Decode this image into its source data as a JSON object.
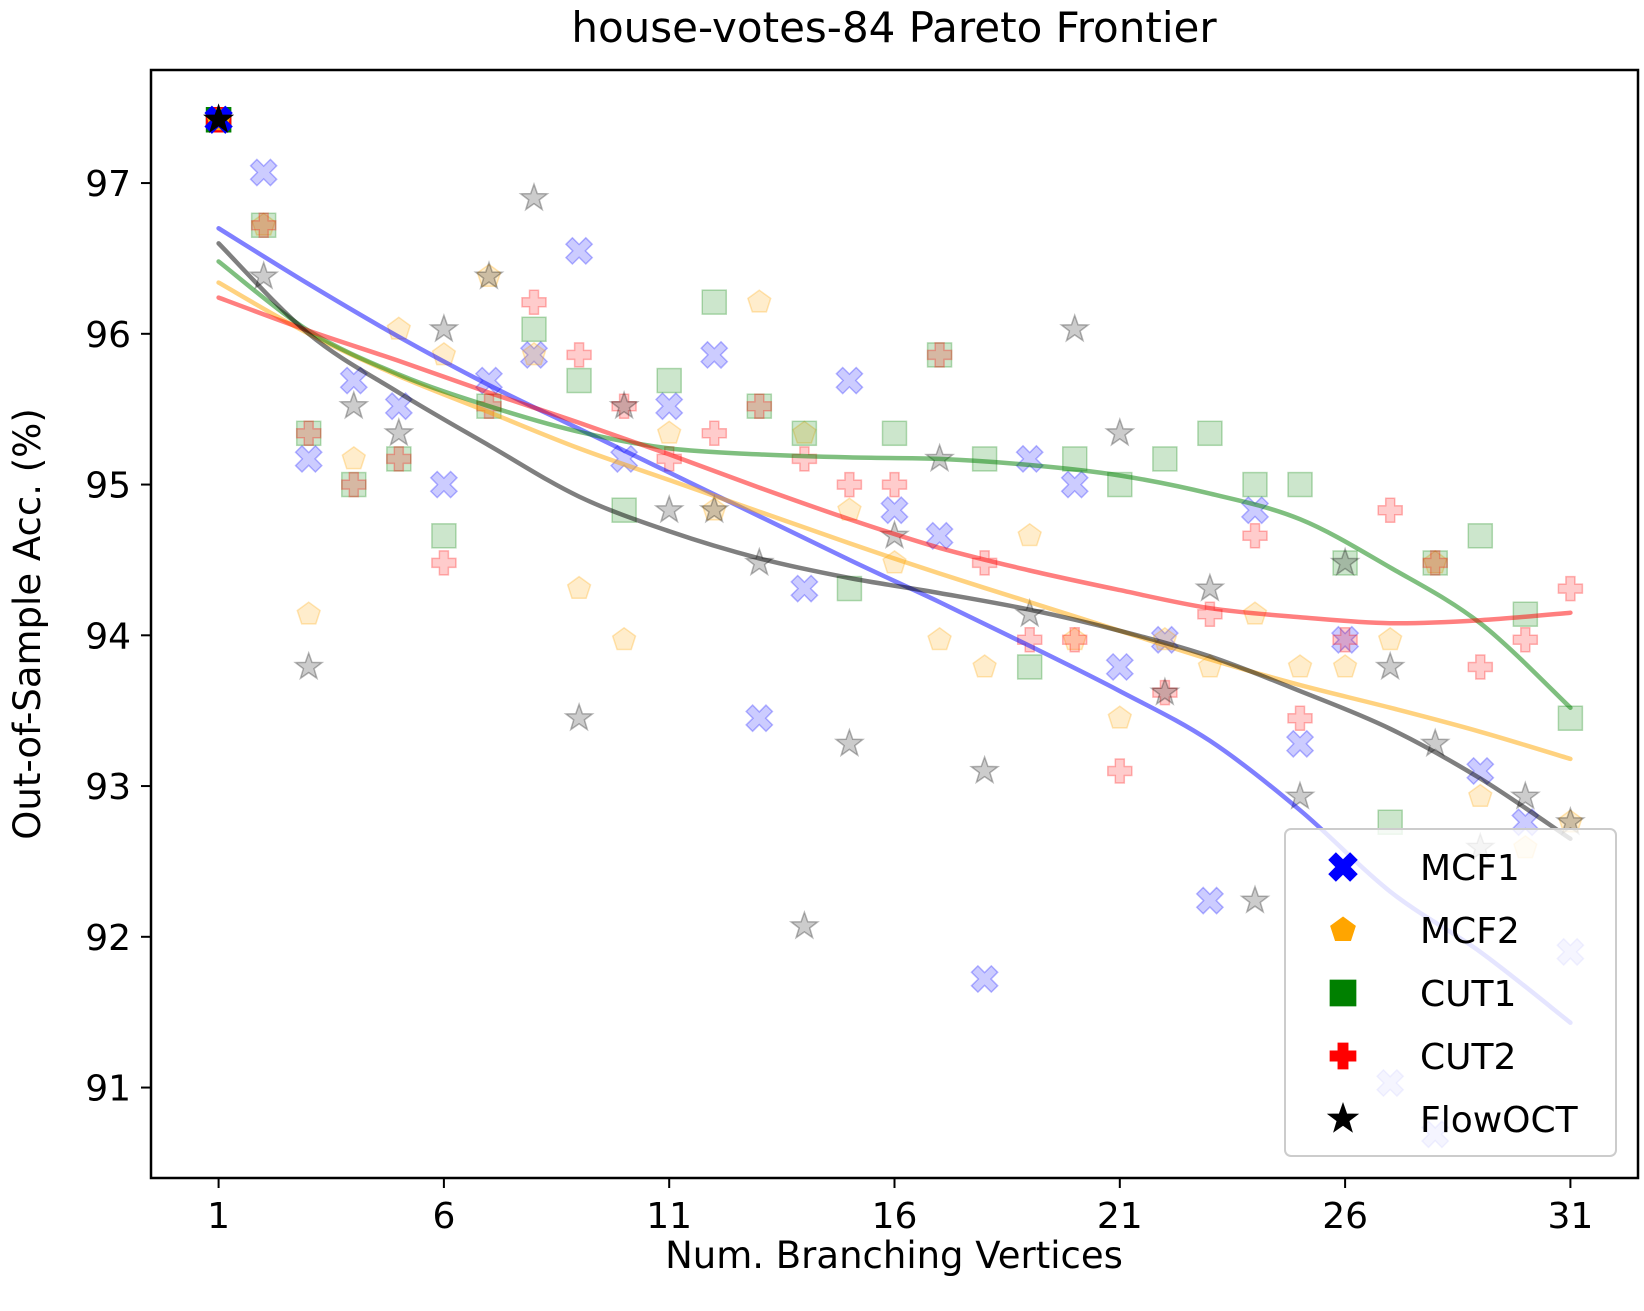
{
  "chart_data": {
    "type": "scatter",
    "title": "house-votes-84 Pareto Frontier",
    "xlabel": "Num. Branching Vertices",
    "ylabel": "Out-of-Sample Acc. (%)",
    "xlim": [
      -0.5,
      32.5
    ],
    "ylim": [
      90.4,
      97.75
    ],
    "xticks": [
      1,
      6,
      11,
      16,
      21,
      26,
      31
    ],
    "yticks": [
      91,
      92,
      93,
      94,
      95,
      96,
      97
    ],
    "grid": false,
    "legend_position": "lower-right",
    "series": [
      {
        "name": "MCF1",
        "marker": "x-filled",
        "color": "#0000ff",
        "points": [
          [
            1,
            97.42
          ],
          [
            2,
            97.07
          ],
          [
            3,
            95.17
          ],
          [
            4,
            95.69
          ],
          [
            5,
            95.52
          ],
          [
            6,
            95.0
          ],
          [
            7,
            95.69
          ],
          [
            8,
            95.86
          ],
          [
            9,
            96.55
          ],
          [
            10,
            95.17
          ],
          [
            11,
            95.52
          ],
          [
            12,
            95.86
          ],
          [
            13,
            93.45
          ],
          [
            14,
            94.31
          ],
          [
            15,
            95.69
          ],
          [
            16,
            94.83
          ],
          [
            17,
            94.66
          ],
          [
            18,
            91.72
          ],
          [
            19,
            95.17
          ],
          [
            20,
            95.0
          ],
          [
            21,
            93.79
          ],
          [
            22,
            93.97
          ],
          [
            23,
            92.24
          ],
          [
            24,
            94.83
          ],
          [
            25,
            93.28
          ],
          [
            26,
            93.97
          ],
          [
            27,
            91.03
          ],
          [
            28,
            90.69
          ],
          [
            29,
            93.1
          ],
          [
            30,
            92.76
          ],
          [
            31,
            91.9
          ]
        ],
        "fit": [
          [
            1,
            96.7
          ],
          [
            3,
            96.33
          ],
          [
            5,
            95.98
          ],
          [
            7,
            95.66
          ],
          [
            9,
            95.37
          ],
          [
            11,
            95.08
          ],
          [
            13,
            94.79
          ],
          [
            15,
            94.5
          ],
          [
            17,
            94.22
          ],
          [
            19,
            93.93
          ],
          [
            21,
            93.63
          ],
          [
            23,
            93.3
          ],
          [
            25,
            92.84
          ],
          [
            27,
            92.3
          ],
          [
            29,
            91.9
          ],
          [
            31,
            91.43
          ]
        ]
      },
      {
        "name": "MCF2",
        "marker": "pentagon",
        "color": "#ffa500",
        "points": [
          [
            1,
            97.42
          ],
          [
            2,
            96.72
          ],
          [
            3,
            94.14
          ],
          [
            4,
            95.17
          ],
          [
            5,
            96.03
          ],
          [
            6,
            95.86
          ],
          [
            7,
            96.38
          ],
          [
            8,
            95.86
          ],
          [
            9,
            94.31
          ],
          [
            10,
            93.97
          ],
          [
            11,
            95.34
          ],
          [
            12,
            94.83
          ],
          [
            13,
            96.21
          ],
          [
            14,
            95.34
          ],
          [
            15,
            94.83
          ],
          [
            16,
            94.48
          ],
          [
            17,
            93.97
          ],
          [
            18,
            93.79
          ],
          [
            19,
            94.66
          ],
          [
            20,
            93.97
          ],
          [
            21,
            93.45
          ],
          [
            22,
            93.97
          ],
          [
            23,
            93.79
          ],
          [
            24,
            94.14
          ],
          [
            25,
            93.79
          ],
          [
            26,
            93.79
          ],
          [
            27,
            93.97
          ],
          [
            28,
            94.48
          ],
          [
            29,
            92.93
          ],
          [
            30,
            92.59
          ],
          [
            31,
            92.76
          ]
        ],
        "fit": [
          [
            1,
            96.34
          ],
          [
            3,
            96.0
          ],
          [
            5,
            95.72
          ],
          [
            7,
            95.48
          ],
          [
            9,
            95.24
          ],
          [
            11,
            95.03
          ],
          [
            13,
            94.82
          ],
          [
            15,
            94.61
          ],
          [
            17,
            94.41
          ],
          [
            19,
            94.22
          ],
          [
            21,
            94.03
          ],
          [
            23,
            93.84
          ],
          [
            25,
            93.67
          ],
          [
            27,
            93.52
          ],
          [
            29,
            93.36
          ],
          [
            31,
            93.18
          ]
        ]
      },
      {
        "name": "CUT1",
        "marker": "square",
        "color": "#008000",
        "points": [
          [
            1,
            97.42
          ],
          [
            2,
            96.72
          ],
          [
            3,
            95.34
          ],
          [
            4,
            95.0
          ],
          [
            5,
            95.17
          ],
          [
            6,
            94.66
          ],
          [
            7,
            95.52
          ],
          [
            8,
            96.03
          ],
          [
            9,
            95.69
          ],
          [
            10,
            94.83
          ],
          [
            11,
            95.69
          ],
          [
            12,
            96.21
          ],
          [
            13,
            95.52
          ],
          [
            14,
            95.34
          ],
          [
            15,
            94.31
          ],
          [
            16,
            95.34
          ],
          [
            17,
            95.86
          ],
          [
            18,
            95.17
          ],
          [
            19,
            93.79
          ],
          [
            20,
            95.17
          ],
          [
            21,
            95.0
          ],
          [
            22,
            95.17
          ],
          [
            23,
            95.34
          ],
          [
            24,
            95.0
          ],
          [
            25,
            95.0
          ],
          [
            26,
            94.48
          ],
          [
            27,
            92.76
          ],
          [
            28,
            94.48
          ],
          [
            29,
            94.66
          ],
          [
            30,
            94.14
          ],
          [
            31,
            93.45
          ]
        ],
        "fit": [
          [
            1,
            96.48
          ],
          [
            3,
            96.02
          ],
          [
            5,
            95.73
          ],
          [
            7,
            95.52
          ],
          [
            9,
            95.35
          ],
          [
            11,
            95.24
          ],
          [
            13,
            95.2
          ],
          [
            15,
            95.18
          ],
          [
            17,
            95.17
          ],
          [
            19,
            95.13
          ],
          [
            21,
            95.06
          ],
          [
            23,
            94.94
          ],
          [
            25,
            94.77
          ],
          [
            27,
            94.45
          ],
          [
            29,
            94.08
          ],
          [
            31,
            93.52
          ]
        ]
      },
      {
        "name": "CUT2",
        "marker": "plus-filled",
        "color": "#ff0000",
        "points": [
          [
            1,
            97.42
          ],
          [
            2,
            96.72
          ],
          [
            3,
            95.34
          ],
          [
            4,
            95.0
          ],
          [
            5,
            95.17
          ],
          [
            6,
            94.48
          ],
          [
            7,
            95.52
          ],
          [
            8,
            96.21
          ],
          [
            9,
            95.86
          ],
          [
            10,
            95.52
          ],
          [
            11,
            95.17
          ],
          [
            12,
            95.34
          ],
          [
            13,
            95.52
          ],
          [
            14,
            95.17
          ],
          [
            15,
            95.0
          ],
          [
            16,
            95.0
          ],
          [
            17,
            95.86
          ],
          [
            18,
            94.48
          ],
          [
            19,
            93.97
          ],
          [
            20,
            93.97
          ],
          [
            21,
            93.1
          ],
          [
            22,
            93.62
          ],
          [
            23,
            94.14
          ],
          [
            24,
            94.66
          ],
          [
            25,
            93.45
          ],
          [
            26,
            93.97
          ],
          [
            27,
            94.83
          ],
          [
            28,
            94.48
          ],
          [
            29,
            93.79
          ],
          [
            30,
            93.97
          ],
          [
            31,
            94.31
          ]
        ],
        "fit": [
          [
            1,
            96.24
          ],
          [
            3,
            96.02
          ],
          [
            5,
            95.82
          ],
          [
            7,
            95.61
          ],
          [
            9,
            95.41
          ],
          [
            11,
            95.2
          ],
          [
            13,
            94.98
          ],
          [
            15,
            94.77
          ],
          [
            17,
            94.58
          ],
          [
            19,
            94.43
          ],
          [
            21,
            94.3
          ],
          [
            23,
            94.18
          ],
          [
            25,
            94.12
          ],
          [
            27,
            94.08
          ],
          [
            29,
            94.1
          ],
          [
            31,
            94.15
          ]
        ]
      },
      {
        "name": "FlowOCT",
        "marker": "star",
        "color": "#000000",
        "points": [
          [
            1,
            97.42
          ],
          [
            2,
            96.38
          ],
          [
            3,
            93.79
          ],
          [
            4,
            95.52
          ],
          [
            5,
            95.34
          ],
          [
            6,
            96.03
          ],
          [
            7,
            96.38
          ],
          [
            8,
            96.9
          ],
          [
            9,
            93.45
          ],
          [
            10,
            95.52
          ],
          [
            11,
            94.83
          ],
          [
            12,
            94.83
          ],
          [
            13,
            94.48
          ],
          [
            14,
            92.07
          ],
          [
            15,
            93.28
          ],
          [
            16,
            94.66
          ],
          [
            17,
            95.17
          ],
          [
            18,
            93.1
          ],
          [
            19,
            94.14
          ],
          [
            20,
            96.03
          ],
          [
            21,
            95.34
          ],
          [
            22,
            93.62
          ],
          [
            23,
            94.31
          ],
          [
            24,
            92.24
          ],
          [
            25,
            92.93
          ],
          [
            26,
            94.48
          ],
          [
            27,
            93.79
          ],
          [
            28,
            93.28
          ],
          [
            29,
            92.59
          ],
          [
            30,
            92.93
          ],
          [
            31,
            92.76
          ]
        ],
        "fit": [
          [
            1,
            96.6
          ],
          [
            3,
            96.0
          ],
          [
            5,
            95.61
          ],
          [
            7,
            95.26
          ],
          [
            9,
            94.92
          ],
          [
            11,
            94.69
          ],
          [
            13,
            94.51
          ],
          [
            15,
            94.38
          ],
          [
            17,
            94.28
          ],
          [
            19,
            94.17
          ],
          [
            21,
            94.03
          ],
          [
            23,
            93.86
          ],
          [
            25,
            93.63
          ],
          [
            27,
            93.38
          ],
          [
            29,
            93.05
          ],
          [
            31,
            92.65
          ]
        ]
      }
    ]
  }
}
